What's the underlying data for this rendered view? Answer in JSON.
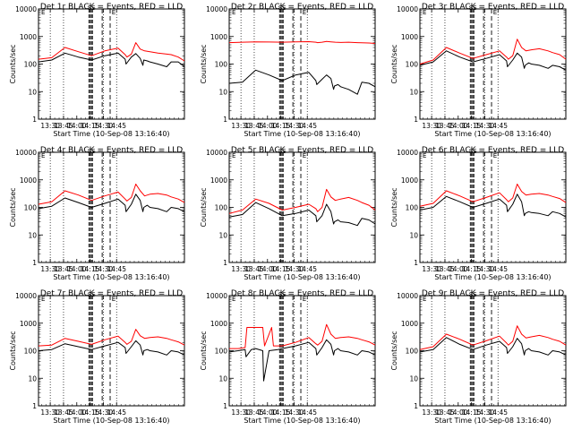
{
  "chart_data": [
    {
      "type": "line",
      "title": "Det 1r BLACK = Events, RED = LLD",
      "xlabel": "Start Time (10-Sep-08 13:16:40)",
      "ylabel": "Counts/sec",
      "x_ticks": [
        "13:30",
        "13:45",
        "14:00",
        "14:15",
        "14:30",
        "14:45"
      ],
      "y_ticks": [
        "1",
        "10",
        "100",
        "1000",
        "10000"
      ],
      "ylim": [
        1,
        10000
      ],
      "y_scale": "log",
      "series": [
        {
          "color": "#000000",
          "x": [
            0,
            15,
            30,
            45,
            60,
            75,
            90,
            98,
            99,
            105,
            110,
            115,
            118,
            119,
            123,
            126,
            135,
            145,
            150,
            158,
            165
          ],
          "y": [
            120,
            140,
            250,
            180,
            140,
            200,
            250,
            150,
            100,
            180,
            240,
            160,
            90,
            140,
            130,
            120,
            100,
            80,
            120,
            120,
            80
          ]
        },
        {
          "color": "#ff0000",
          "x": [
            0,
            15,
            30,
            45,
            60,
            75,
            90,
            98,
            100,
            105,
            110,
            115,
            120,
            126,
            135,
            145,
            150,
            158,
            165
          ],
          "y": [
            150,
            170,
            400,
            280,
            200,
            300,
            380,
            220,
            180,
            230,
            600,
            350,
            300,
            280,
            250,
            230,
            220,
            180,
            130
          ]
        }
      ],
      "markers": [
        "SS",
        "E"
      ]
    },
    {
      "type": "line",
      "title": "Det 2r BLACK = Events, RED = LLD",
      "xlabel": "Start Time (10-Sep-08 13:16:40)",
      "ylabel": "Counts/sec",
      "x_ticks": [
        "13:30",
        "13:45",
        "14:00",
        "14:15",
        "14:30",
        "14:45"
      ],
      "y_ticks": [
        "1",
        "10",
        "100",
        "1000",
        "10000"
      ],
      "ylim": [
        1,
        10000
      ],
      "y_scale": "log",
      "series": [
        {
          "color": "#000000",
          "x": [
            0,
            15,
            30,
            45,
            60,
            75,
            90,
            98,
            99,
            105,
            110,
            115,
            118,
            119,
            123,
            126,
            135,
            145,
            150,
            158,
            165
          ],
          "y": [
            20,
            22,
            60,
            40,
            25,
            40,
            50,
            25,
            18,
            28,
            40,
            30,
            12,
            16,
            18,
            15,
            12,
            8,
            22,
            20,
            15
          ]
        },
        {
          "color": "#ff0000",
          "x": [
            0,
            15,
            30,
            45,
            60,
            75,
            90,
            98,
            100,
            105,
            110,
            115,
            120,
            126,
            135,
            145,
            150,
            158,
            165
          ],
          "y": [
            600,
            620,
            640,
            630,
            620,
            640,
            650,
            620,
            600,
            620,
            660,
            640,
            620,
            610,
            620,
            600,
            590,
            580,
            560
          ]
        }
      ],
      "markers": [
        "SS",
        "E"
      ]
    },
    {
      "type": "line",
      "title": "Det 3r BLACK = Events, RED = LLD",
      "xlabel": "Start Time (10-Sep-08 13:16:40)",
      "ylabel": "Counts/sec",
      "x_ticks": [
        "13:30",
        "13:45",
        "14:00",
        "14:15",
        "14:30",
        "14:45"
      ],
      "y_ticks": [
        "1",
        "10",
        "100",
        "1000",
        "10000"
      ],
      "ylim": [
        1,
        10000
      ],
      "y_scale": "log",
      "series": [
        {
          "color": "#000000",
          "x": [
            0,
            15,
            30,
            45,
            60,
            75,
            90,
            98,
            99,
            105,
            110,
            115,
            118,
            119,
            123,
            126,
            135,
            145,
            150,
            158,
            165
          ],
          "y": [
            90,
            120,
            300,
            180,
            120,
            160,
            220,
            130,
            80,
            140,
            250,
            180,
            70,
            90,
            110,
            100,
            90,
            70,
            90,
            80,
            60
          ]
        },
        {
          "color": "#ff0000",
          "x": [
            0,
            15,
            30,
            45,
            60,
            75,
            90,
            98,
            100,
            105,
            110,
            115,
            120,
            126,
            135,
            145,
            150,
            158,
            165
          ],
          "y": [
            100,
            140,
            400,
            250,
            160,
            220,
            300,
            180,
            150,
            200,
            800,
            400,
            300,
            330,
            360,
            300,
            260,
            220,
            150
          ]
        }
      ],
      "markers": [
        "SS",
        "E"
      ]
    },
    {
      "type": "line",
      "title": "Det 4r BLACK = Events, RED = LLD",
      "xlabel": "Start Time (10-Sep-08 13:16:40)",
      "ylabel": "Counts/sec",
      "x_ticks": [
        "13:30",
        "13:45",
        "14:00",
        "14:15",
        "14:30",
        "14:45"
      ],
      "y_ticks": [
        "1",
        "10",
        "100",
        "1000",
        "10000"
      ],
      "ylim": [
        1,
        10000
      ],
      "y_scale": "log",
      "series": [
        {
          "color": "#000000",
          "x": [
            0,
            15,
            30,
            45,
            60,
            75,
            90,
            98,
            99,
            105,
            110,
            115,
            118,
            119,
            123,
            126,
            135,
            145,
            150,
            158,
            165
          ],
          "y": [
            90,
            110,
            220,
            150,
            100,
            140,
            200,
            120,
            70,
            130,
            300,
            180,
            70,
            100,
            120,
            100,
            90,
            70,
            100,
            90,
            70
          ]
        },
        {
          "color": "#ff0000",
          "x": [
            0,
            15,
            30,
            45,
            60,
            75,
            90,
            98,
            100,
            105,
            110,
            115,
            120,
            126,
            135,
            145,
            150,
            158,
            165
          ],
          "y": [
            130,
            160,
            400,
            280,
            180,
            260,
            360,
            200,
            170,
            230,
            700,
            400,
            260,
            300,
            320,
            280,
            240,
            200,
            150
          ]
        }
      ],
      "markers": [
        "SS",
        "E"
      ]
    },
    {
      "type": "line",
      "title": "Det 5r BLACK = Events, RED = LLD",
      "xlabel": "Start Time (10-Sep-08 13:16:40)",
      "ylabel": "Counts/sec",
      "x_ticks": [
        "13:30",
        "13:45",
        "14:00",
        "14:15",
        "14:30",
        "14:45"
      ],
      "y_ticks": [
        "1",
        "10",
        "100",
        "1000",
        "10000"
      ],
      "ylim": [
        1,
        10000
      ],
      "y_scale": "log",
      "series": [
        {
          "color": "#000000",
          "x": [
            0,
            15,
            30,
            45,
            60,
            75,
            90,
            98,
            99,
            105,
            110,
            115,
            118,
            119,
            123,
            126,
            135,
            145,
            150,
            158,
            165
          ],
          "y": [
            45,
            55,
            150,
            90,
            50,
            60,
            80,
            50,
            30,
            50,
            130,
            70,
            25,
            30,
            35,
            30,
            28,
            22,
            40,
            35,
            25
          ]
        },
        {
          "color": "#ff0000",
          "x": [
            0,
            15,
            30,
            45,
            60,
            75,
            90,
            98,
            100,
            105,
            110,
            115,
            120,
            126,
            135,
            145,
            150,
            158,
            165
          ],
          "y": [
            60,
            80,
            200,
            140,
            80,
            100,
            130,
            90,
            70,
            100,
            450,
            240,
            180,
            200,
            230,
            180,
            150,
            120,
            80
          ]
        }
      ],
      "markers": [
        "SS",
        "E"
      ]
    },
    {
      "type": "line",
      "title": "Det 6r BLACK = Events, RED = LLD",
      "xlabel": "Start Time (10-Sep-08 13:16:40)",
      "ylabel": "Counts/sec",
      "x_ticks": [
        "13:30",
        "13:45",
        "14:00",
        "14:15",
        "14:30",
        "14:45"
      ],
      "y_ticks": [
        "1",
        "10",
        "100",
        "1000",
        "10000"
      ],
      "ylim": [
        1,
        10000
      ],
      "y_scale": "log",
      "series": [
        {
          "color": "#000000",
          "x": [
            0,
            15,
            30,
            45,
            60,
            75,
            90,
            98,
            99,
            105,
            110,
            115,
            118,
            119,
            123,
            126,
            135,
            145,
            150,
            158,
            165
          ],
          "y": [
            80,
            100,
            250,
            160,
            100,
            140,
            200,
            120,
            70,
            130,
            300,
            160,
            50,
            60,
            70,
            65,
            60,
            50,
            70,
            60,
            45
          ]
        },
        {
          "color": "#ff0000",
          "x": [
            0,
            15,
            30,
            45,
            60,
            75,
            90,
            98,
            100,
            105,
            110,
            115,
            120,
            126,
            135,
            145,
            150,
            158,
            165
          ],
          "y": [
            110,
            140,
            400,
            260,
            160,
            230,
            340,
            190,
            160,
            220,
            700,
            380,
            280,
            300,
            320,
            280,
            250,
            210,
            150
          ]
        }
      ],
      "markers": [
        "SS",
        "E"
      ]
    },
    {
      "type": "line",
      "title": "Det 7r BLACK = Events, RED = LLD",
      "xlabel": "Start Time (10-Sep-08 13:16:40)",
      "ylabel": "Counts/sec",
      "x_ticks": [
        "13:30",
        "13:45",
        "14:00",
        "14:15",
        "14:30",
        "14:45"
      ],
      "y_ticks": [
        "1",
        "10",
        "100",
        "1000",
        "10000"
      ],
      "ylim": [
        1,
        10000
      ],
      "y_scale": "log",
      "series": [
        {
          "color": "#000000",
          "x": [
            0,
            15,
            30,
            45,
            60,
            75,
            90,
            98,
            99,
            105,
            110,
            115,
            118,
            119,
            123,
            126,
            135,
            145,
            150,
            158,
            165
          ],
          "y": [
            100,
            110,
            180,
            140,
            110,
            150,
            200,
            130,
            80,
            140,
            230,
            160,
            70,
            100,
            110,
            100,
            90,
            70,
            100,
            90,
            70
          ]
        },
        {
          "color": "#ff0000",
          "x": [
            0,
            15,
            30,
            45,
            60,
            75,
            90,
            98,
            100,
            105,
            110,
            115,
            120,
            126,
            135,
            145,
            150,
            158,
            165
          ],
          "y": [
            150,
            160,
            280,
            220,
            170,
            250,
            340,
            200,
            170,
            220,
            600,
            350,
            280,
            300,
            320,
            280,
            250,
            210,
            160
          ]
        }
      ],
      "markers": [
        "SS",
        "E"
      ]
    },
    {
      "type": "line",
      "title": "Det 8r BLACK = Events, RED = LLD",
      "xlabel": "Start Time (10-Sep-08 13:16:40)",
      "ylabel": "Counts/sec",
      "x_ticks": [
        "13:30",
        "13:45",
        "14:00",
        "14:15",
        "14:30",
        "14:45"
      ],
      "y_ticks": [
        "1",
        "10",
        "100",
        "1000",
        "10000"
      ],
      "ylim": [
        1,
        10000
      ],
      "y_scale": "log",
      "series": [
        {
          "color": "#000000",
          "x": [
            0,
            10,
            18,
            19,
            25,
            30,
            38,
            39,
            45,
            55,
            60,
            75,
            90,
            98,
            99,
            105,
            110,
            115,
            118,
            119,
            123,
            126,
            135,
            145,
            150,
            158,
            165
          ],
          "y": [
            90,
            100,
            110,
            60,
            110,
            120,
            100,
            8,
            100,
            110,
            120,
            150,
            200,
            120,
            70,
            130,
            250,
            170,
            70,
            100,
            120,
            100,
            90,
            70,
            100,
            90,
            70
          ]
        },
        {
          "color": "#ff0000",
          "x": [
            0,
            10,
            18,
            20,
            30,
            38,
            40,
            48,
            50,
            60,
            75,
            90,
            98,
            100,
            105,
            110,
            115,
            120,
            126,
            135,
            145,
            150,
            158,
            165
          ],
          "y": [
            120,
            120,
            130,
            700,
            700,
            700,
            150,
            700,
            150,
            150,
            200,
            300,
            180,
            160,
            220,
            900,
            400,
            280,
            300,
            320,
            280,
            250,
            210,
            160
          ]
        }
      ],
      "markers": [
        "SS",
        "E"
      ]
    },
    {
      "type": "line",
      "title": "Det 9r BLACK = Events, RED = LLD",
      "xlabel": "Start Time (10-Sep-08 13:16:40)",
      "ylabel": "Counts/sec",
      "x_ticks": [
        "13:30",
        "13:45",
        "14:00",
        "14:15",
        "14:30",
        "14:45"
      ],
      "y_ticks": [
        "1",
        "10",
        "100",
        "1000",
        "10000"
      ],
      "ylim": [
        1,
        10000
      ],
      "y_scale": "log",
      "series": [
        {
          "color": "#000000",
          "x": [
            0,
            15,
            30,
            45,
            60,
            75,
            90,
            98,
            99,
            105,
            110,
            115,
            118,
            119,
            123,
            126,
            135,
            145,
            150,
            158,
            165
          ],
          "y": [
            90,
            110,
            300,
            170,
            110,
            160,
            220,
            130,
            80,
            140,
            280,
            180,
            70,
            100,
            120,
            100,
            90,
            70,
            100,
            90,
            70
          ]
        },
        {
          "color": "#ff0000",
          "x": [
            0,
            15,
            30,
            45,
            60,
            75,
            90,
            98,
            100,
            105,
            110,
            115,
            120,
            126,
            135,
            145,
            150,
            158,
            165
          ],
          "y": [
            110,
            140,
            400,
            260,
            160,
            230,
            340,
            190,
            160,
            220,
            800,
            400,
            290,
            320,
            360,
            300,
            260,
            220,
            160
          ]
        }
      ],
      "markers": [
        "SS",
        "E"
      ]
    }
  ]
}
